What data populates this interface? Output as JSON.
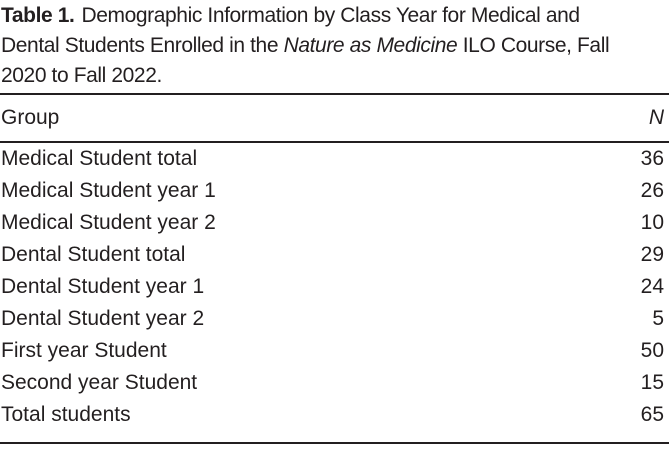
{
  "colors": {
    "text": "#231f20",
    "background": "#ffffff",
    "rule": "#231f20"
  },
  "caption": {
    "label": "Table 1.",
    "line1_rest": "Demographic Information by Class Year for Medical and",
    "line2_pre": "Dental Students Enrolled in the",
    "line2_italic": "Nature as Medicine",
    "line2_post": "ILO Course, Fall",
    "line3": "2020 to Fall 2022."
  },
  "table": {
    "columns": {
      "group": "Group",
      "n": "N"
    },
    "rows": [
      {
        "group": "Medical Student total",
        "n": "36"
      },
      {
        "group": "Medical Student year 1",
        "n": "26"
      },
      {
        "group": "Medical Student year 2",
        "n": "10"
      },
      {
        "group": "Dental Student total",
        "n": "29"
      },
      {
        "group": "Dental Student year 1",
        "n": "24"
      },
      {
        "group": "Dental Student year 2",
        "n": "5"
      },
      {
        "group": "First year Student",
        "n": "50"
      },
      {
        "group": "Second year Student",
        "n": "15"
      },
      {
        "group": "Total students",
        "n": "65"
      }
    ]
  },
  "chart_data": {
    "type": "table",
    "title": "Table 1. Demographic Information by Class Year for Medical and Dental Students Enrolled in the Nature as Medicine ILO Course, Fall 2020 to Fall 2022.",
    "columns": [
      "Group",
      "N"
    ],
    "categories": [
      "Medical Student total",
      "Medical Student year 1",
      "Medical Student year 2",
      "Dental Student total",
      "Dental Student year 1",
      "Dental Student year 2",
      "First year Student",
      "Second year Student",
      "Total students"
    ],
    "values": [
      36,
      26,
      10,
      29,
      24,
      5,
      50,
      15,
      65
    ]
  }
}
